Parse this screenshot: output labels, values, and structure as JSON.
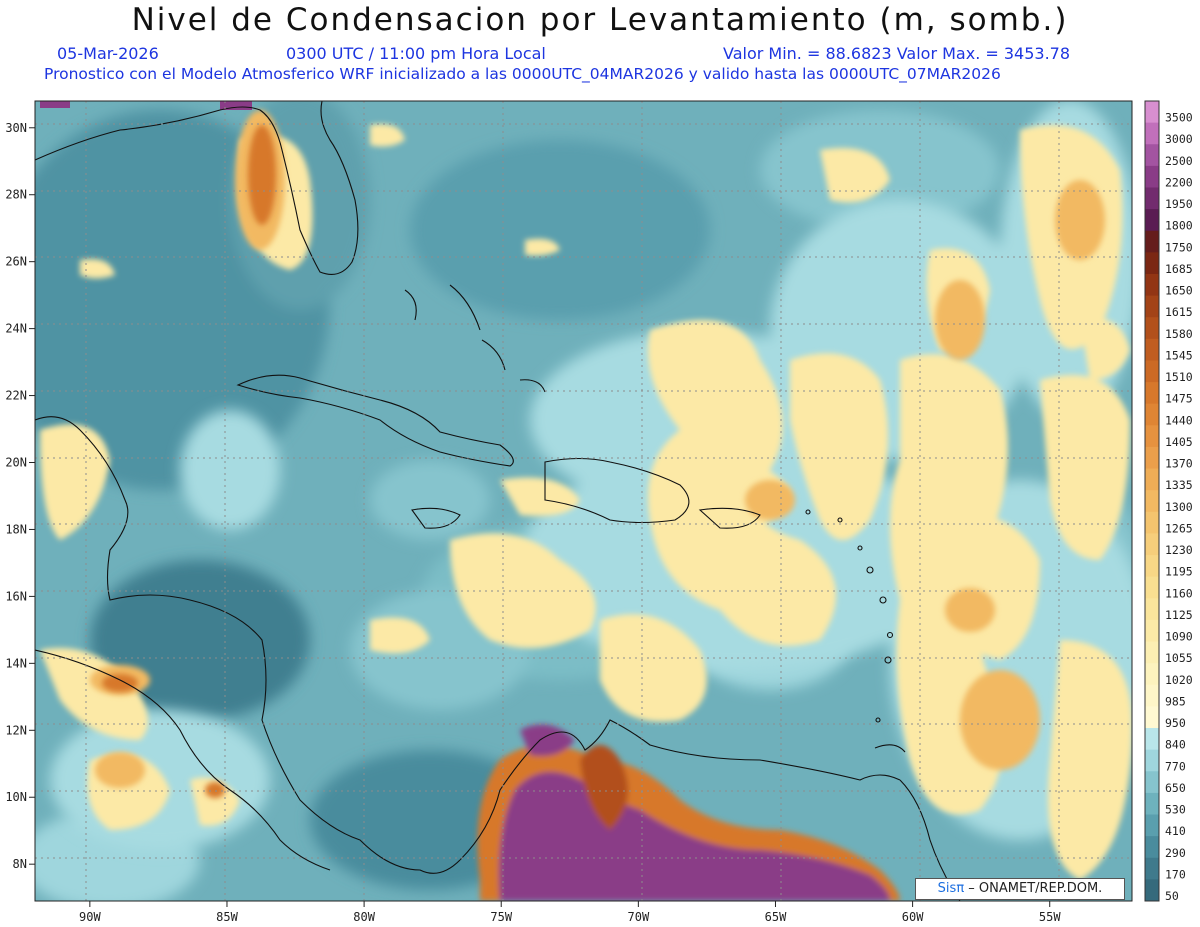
{
  "header": {
    "title": "Nivel de Condensacion por Levantamiento (m, somb.)",
    "date": "05-Mar-2026",
    "time": "0300 UTC / 11:00 pm Hora Local",
    "value_range": "Valor Min. = 88.6823   Valor Max. = 3453.78",
    "forecast": "Pronostico con el Modelo Atmosferico WRF inicializado a las 0000UTC_04MAR2026 y valido hasta las  0000UTC_07MAR2026"
  },
  "map": {
    "lon_labels": [
      "90W",
      "85W",
      "80W",
      "75W",
      "70W",
      "65W",
      "60W",
      "55W"
    ],
    "lon_values": [
      -90,
      -85,
      -80,
      -75,
      -70,
      -65,
      -60,
      -55
    ],
    "lat_labels": [
      "30N",
      "28N",
      "26N",
      "24N",
      "22N",
      "20N",
      "18N",
      "16N",
      "14N",
      "12N",
      "10N",
      "8N"
    ],
    "lat_values": [
      30,
      28,
      26,
      24,
      22,
      20,
      18,
      16,
      14,
      12,
      10,
      8
    ],
    "lon_range": [
      -92,
      -52
    ],
    "lat_range": [
      6.9,
      30.8
    ]
  },
  "legend": {
    "levels": [
      "3500",
      "3000",
      "2500",
      "2200",
      "1950",
      "1800",
      "1750",
      "1685",
      "1650",
      "1615",
      "1580",
      "1545",
      "1510",
      "1475",
      "1440",
      "1405",
      "1370",
      "1335",
      "1300",
      "1265",
      "1230",
      "1195",
      "1160",
      "1125",
      "1090",
      "1055",
      "1020",
      "985",
      "950",
      "840",
      "770",
      "650",
      "530",
      "410",
      "290",
      "170",
      "50"
    ],
    "colors": [
      "#d88fd0",
      "#c170bb",
      "#a354a1",
      "#8a3c87",
      "#722b6e",
      "#5a1c53",
      "#651d1c",
      "#7b2713",
      "#923514",
      "#a34317",
      "#b2501b",
      "#c05d20",
      "#cc6a25",
      "#d7782b",
      "#df8534",
      "#e6923f",
      "#eb9f4b",
      "#efad56",
      "#f2b962",
      "#f4c46e",
      "#f6ce7b",
      "#f8d786",
      "#f9df91",
      "#fae59c",
      "#fbeaa7",
      "#fcefb3",
      "#fdf3be",
      "#fef6c8",
      "#fff9d2",
      "#b9e6ea",
      "#9fd6dd",
      "#86c4cd",
      "#6eb2bd",
      "#5a9fae",
      "#4a8c9d",
      "#3f7a8c",
      "#356a7c"
    ]
  },
  "credit": {
    "sis": "Sis",
    "pi": "π",
    "text": "– ONAMET/REP.DOM."
  }
}
